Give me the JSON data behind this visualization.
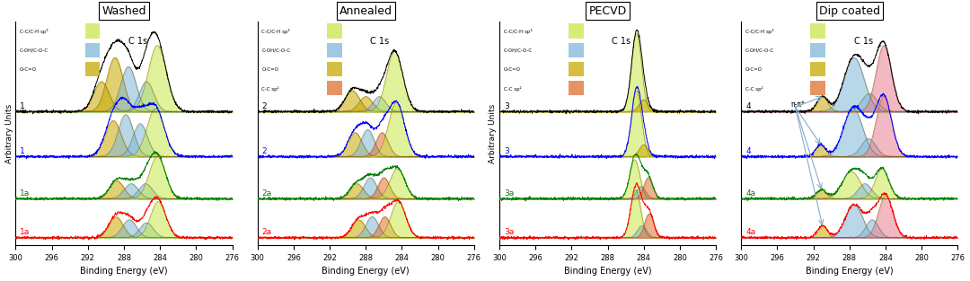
{
  "panel_titles": [
    "Washed",
    "Annealed",
    "PECVD",
    "Dip coated"
  ],
  "xlabel": "Binding Energy (eV)",
  "ylabel": "Arbitrary Units",
  "c1s": "C 1s",
  "xticks": [
    300,
    296,
    292,
    288,
    284,
    280,
    276
  ],
  "legend_items_3": [
    {
      "label": "C-C/C-H sp³",
      "color": "#c8e84a"
    },
    {
      "label": "C-OH/C-O-C",
      "color": "#7fb8d8"
    },
    {
      "label": "O-C=O",
      "color": "#c8a800"
    }
  ],
  "legend_items_4": [
    {
      "label": "C-C/C-H sp³",
      "color": "#c8e84a"
    },
    {
      "label": "C-OH/C-O-C",
      "color": "#7fb8d8"
    },
    {
      "label": "O-C=O",
      "color": "#c8a800"
    },
    {
      "label": "C-C sp²",
      "color": "#e07030"
    }
  ],
  "col_green": "#c8e84a",
  "col_blue": "#7fb8d8",
  "col_dyel": "#c8a800",
  "col_orange": "#e07030",
  "col_pink": "#e88090",
  "arrow_color": "#88aacc"
}
